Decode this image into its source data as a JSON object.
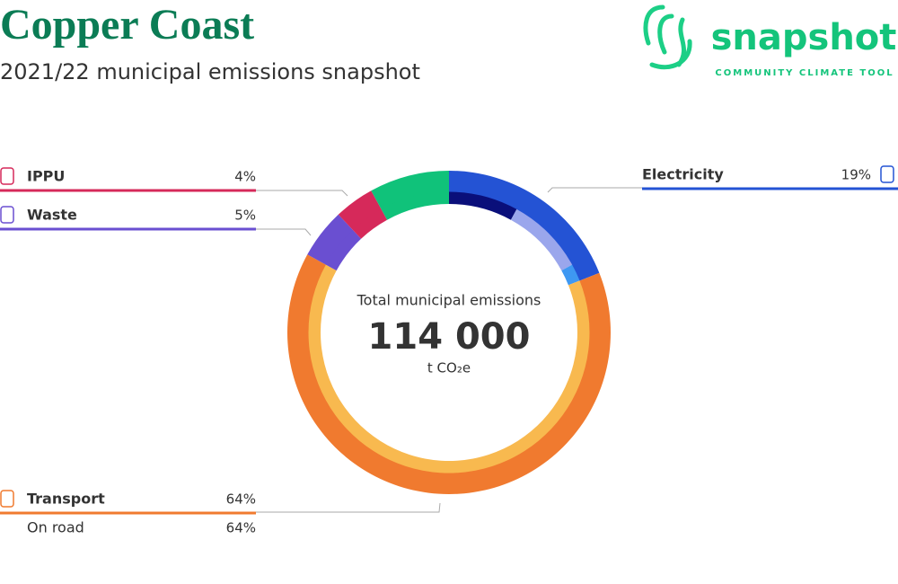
{
  "header": {
    "title": "Copper Coast",
    "subtitle": "2021/22 municipal emissions snapshot"
  },
  "logo": {
    "name": "snapshot",
    "tagline": "COMMUNITY CLIMATE TOOL"
  },
  "chart_data": {
    "type": "donut",
    "center": {
      "label": "Total municipal emissions",
      "value": 114000,
      "value_label": "114 000",
      "unit": "t CO₂e"
    },
    "categories": [
      "Electricity",
      "Transport",
      "Waste",
      "IPPU",
      null
    ],
    "values": [
      19,
      64,
      5,
      4,
      8
    ],
    "value_labels": [
      "19%",
      "64%",
      "5%",
      "4%",
      null
    ],
    "colors": [
      "#2453d4",
      "#f07a2f",
      "#6a4fd1",
      "#d6295a",
      "#10c27a"
    ],
    "subsectors": {
      "categories": [
        null,
        null,
        null,
        "On road",
        null,
        null,
        null
      ],
      "values": [
        8,
        9,
        2,
        64,
        5,
        4,
        8
      ],
      "value_labels": [
        null,
        null,
        null,
        "64%",
        null,
        null,
        null
      ],
      "colors": [
        "#0a0f7a",
        "#9aa6ec",
        "#3e98f2",
        "#f8b94f",
        "#6a4fd1",
        "#d6295a",
        "#10c27a"
      ]
    }
  }
}
